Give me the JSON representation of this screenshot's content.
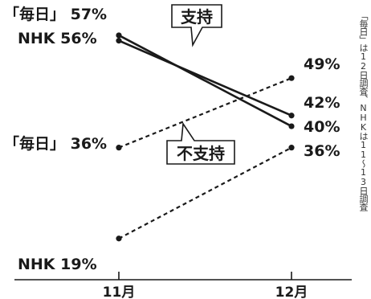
{
  "chart_data": {
    "type": "line",
    "categories": [
      "11月",
      "12月"
    ],
    "series": [
      {
        "group": "支持",
        "label_left": "「毎日」 57%",
        "label_right": "40%",
        "values": [
          57,
          40
        ],
        "style": "solid"
      },
      {
        "group": "支持",
        "label_left": "NHK 56%",
        "label_right": "42%",
        "values": [
          56,
          42
        ],
        "style": "solid"
      },
      {
        "group": "不支持",
        "label_left": "「毎日」 36%",
        "label_right": "49%",
        "values": [
          36,
          49
        ],
        "style": "dashed"
      },
      {
        "group": "不支持",
        "label_left": "NHK 19%",
        "label_right": "36%",
        "values": [
          19,
          36
        ],
        "style": "dashed"
      }
    ],
    "callouts": {
      "support": "支持",
      "nonsupport": "不支持"
    },
    "ylim": [
      14,
      60
    ],
    "grid": false,
    "colors": {
      "line": "#1a1a1a",
      "background": "#ffffff"
    }
  },
  "source_note": "「毎日」は12日調査、NHKは11～13日調査"
}
